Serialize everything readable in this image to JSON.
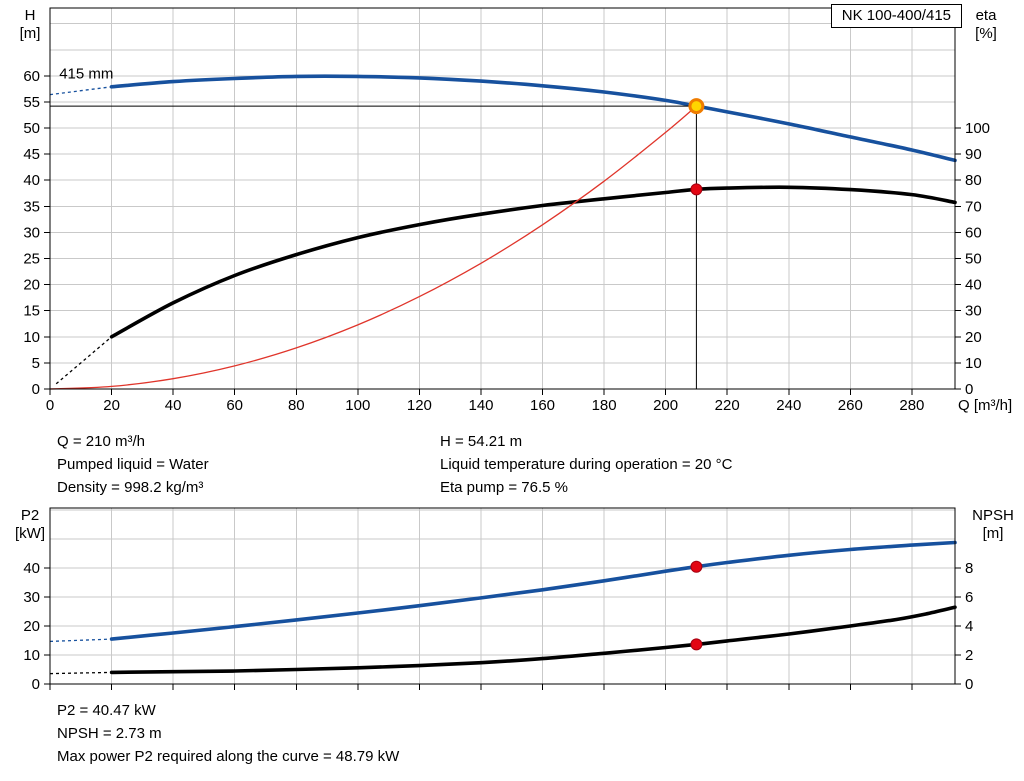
{
  "pump_model": "NK 100-400/415",
  "info_top_left": [
    "Q = 210 m³/h",
    "Pumped liquid = Water",
    "Density = 998.2 kg/m³"
  ],
  "info_top_right": [
    "H = 54.21 m",
    "Liquid temperature during operation = 20 °C",
    "Eta pump = 76.5 %"
  ],
  "info_bottom": [
    "P2 = 40.47 kW",
    "NPSH = 2.73 m",
    "Max power P2 required along the curve = 48.79 kW"
  ],
  "colors": {
    "curve_blue": "#17519e",
    "curve_black": "#000000",
    "curve_red": "#e0352b",
    "marker_red": "#e30613",
    "marker_red_edge": "#a50010",
    "duty_fill": "#ffd500",
    "duty_ring": "#ef7c00",
    "grid": "#c9c9c9",
    "frame": "#000000"
  },
  "chart_data": [
    {
      "type": "line",
      "title": "NK 100-400/415",
      "x_axis": {
        "label": "Q [m³/h]",
        "min": 0,
        "max": 294,
        "ticks": [
          0,
          20,
          40,
          60,
          80,
          100,
          120,
          140,
          160,
          180,
          200,
          220,
          240,
          260,
          280
        ],
        "grid_step": 20,
        "grid_max": 280
      },
      "left_axis": {
        "label": "H [m]",
        "title_lines": [
          "H",
          "[m]"
        ],
        "min": 0,
        "max": 73,
        "ticks": [
          0,
          5,
          10,
          15,
          20,
          25,
          30,
          35,
          40,
          45,
          50,
          55,
          60
        ],
        "grid_step": 5,
        "grid_max": 70
      },
      "right_axis": {
        "label": "eta [%]",
        "title_lines": [
          "eta",
          "[%]"
        ],
        "min": 0,
        "max": 146,
        "ticks": [
          0,
          10,
          20,
          30,
          40,
          50,
          60,
          70,
          80,
          90,
          100
        ]
      },
      "plot_label": {
        "text": "415 mm",
        "q": 3,
        "value": 59.5,
        "axis": "left"
      },
      "series": [
        {
          "name": "head-curve",
          "axis": "left",
          "color": "#17519e",
          "width": 3.6,
          "lead": [
            [
              0,
              56.4
            ],
            [
              20,
              57.9
            ]
          ],
          "points": [
            [
              20,
              57.9
            ],
            [
              40,
              58.9
            ],
            [
              60,
              59.5
            ],
            [
              80,
              59.9
            ],
            [
              100,
              59.9
            ],
            [
              120,
              59.6
            ],
            [
              140,
              59.0
            ],
            [
              160,
              58.1
            ],
            [
              180,
              56.9
            ],
            [
              200,
              55.3
            ],
            [
              210,
              54.21
            ],
            [
              220,
              53.1
            ],
            [
              240,
              50.8
            ],
            [
              260,
              48.3
            ],
            [
              280,
              45.8
            ],
            [
              294,
              43.8
            ]
          ]
        },
        {
          "name": "efficiency-curve",
          "axis": "right",
          "color": "#000000",
          "width": 3.6,
          "lead": [
            [
              2,
              2
            ],
            [
              20,
              20
            ]
          ],
          "points": [
            [
              20,
              20
            ],
            [
              40,
              33
            ],
            [
              60,
              43.5
            ],
            [
              80,
              51.5
            ],
            [
              100,
              58
            ],
            [
              120,
              63
            ],
            [
              140,
              67
            ],
            [
              160,
              70.3
            ],
            [
              180,
              72.9
            ],
            [
              200,
              75.3
            ],
            [
              210,
              76.5
            ],
            [
              220,
              77.0
            ],
            [
              240,
              77.3
            ],
            [
              260,
              76.4
            ],
            [
              280,
              74.5
            ],
            [
              294,
              71.5
            ]
          ]
        },
        {
          "name": "system-curve",
          "axis": "left",
          "color": "#e0352b",
          "width": 1.3,
          "points": [
            [
              0,
              0
            ],
            [
              20,
              0.49
            ],
            [
              40,
              1.97
            ],
            [
              60,
              4.43
            ],
            [
              80,
              7.87
            ],
            [
              100,
              12.29
            ],
            [
              120,
              17.7
            ],
            [
              140,
              24.09
            ],
            [
              160,
              31.46
            ],
            [
              180,
              39.82
            ],
            [
              200,
              49.16
            ],
            [
              210,
              54.21
            ]
          ]
        }
      ],
      "guides": [
        {
          "type": "vline",
          "q": 210,
          "v0": 0,
          "v1": 54.21,
          "axis": "left"
        },
        {
          "type": "hline",
          "v": 54.21,
          "q0": 0,
          "q1": 210,
          "axis": "left"
        }
      ],
      "markers": [
        {
          "name": "duty-point",
          "style": "duty",
          "axis": "left",
          "q": 210,
          "value": 54.21
        },
        {
          "name": "efficiency-point",
          "style": "dot",
          "axis": "right",
          "q": 210,
          "value": 76.5
        }
      ]
    },
    {
      "type": "line",
      "title": "Power and NPSH vs flow",
      "x_axis": {
        "label": "",
        "min": 0,
        "max": 294,
        "ticks": [
          0,
          20,
          40,
          60,
          80,
          100,
          120,
          140,
          160,
          180,
          200,
          220,
          240,
          260,
          280
        ],
        "grid_step": 20,
        "grid_max": 280
      },
      "left_axis": {
        "label": "P2 [kW]",
        "title_lines": [
          "P2",
          "[kW]"
        ],
        "min": 0,
        "max": 60.7,
        "ticks": [
          0,
          10,
          20,
          30,
          40
        ],
        "grid_step": 10,
        "grid_max": 60
      },
      "right_axis": {
        "label": "NPSH [m]",
        "title_lines": [
          "NPSH",
          "[m]"
        ],
        "min": 0,
        "max": 12.14,
        "ticks": [
          0,
          2,
          4,
          6,
          8
        ]
      },
      "series": [
        {
          "name": "p2-curve",
          "axis": "left",
          "color": "#17519e",
          "width": 3.6,
          "lead": [
            [
              0,
              14.7
            ],
            [
              20,
              15.5
            ]
          ],
          "points": [
            [
              20,
              15.5
            ],
            [
              40,
              17.6
            ],
            [
              60,
              19.8
            ],
            [
              80,
              22.1
            ],
            [
              100,
              24.5
            ],
            [
              120,
              27.0
            ],
            [
              140,
              29.7
            ],
            [
              160,
              32.5
            ],
            [
              180,
              35.6
            ],
            [
              200,
              38.9
            ],
            [
              210,
              40.47
            ],
            [
              220,
              41.9
            ],
            [
              240,
              44.4
            ],
            [
              260,
              46.4
            ],
            [
              280,
              47.9
            ],
            [
              294,
              48.79
            ]
          ]
        },
        {
          "name": "npsh-curve",
          "axis": "right",
          "color": "#000000",
          "width": 3.6,
          "lead": [
            [
              0,
              0.72
            ],
            [
              20,
              0.8
            ]
          ],
          "points": [
            [
              20,
              0.8
            ],
            [
              40,
              0.85
            ],
            [
              60,
              0.9
            ],
            [
              80,
              1.0
            ],
            [
              100,
              1.12
            ],
            [
              120,
              1.27
            ],
            [
              140,
              1.47
            ],
            [
              160,
              1.75
            ],
            [
              180,
              2.12
            ],
            [
              200,
              2.52
            ],
            [
              210,
              2.73
            ],
            [
              220,
              2.97
            ],
            [
              240,
              3.45
            ],
            [
              260,
              4.0
            ],
            [
              275,
              4.45
            ],
            [
              285,
              4.85
            ],
            [
              294,
              5.3
            ]
          ]
        }
      ],
      "guides": [],
      "markers": [
        {
          "name": "p2-point",
          "style": "dot",
          "axis": "left",
          "q": 210,
          "value": 40.47
        },
        {
          "name": "npsh-point",
          "style": "dot",
          "axis": "right",
          "q": 210,
          "value": 2.73
        }
      ]
    }
  ]
}
